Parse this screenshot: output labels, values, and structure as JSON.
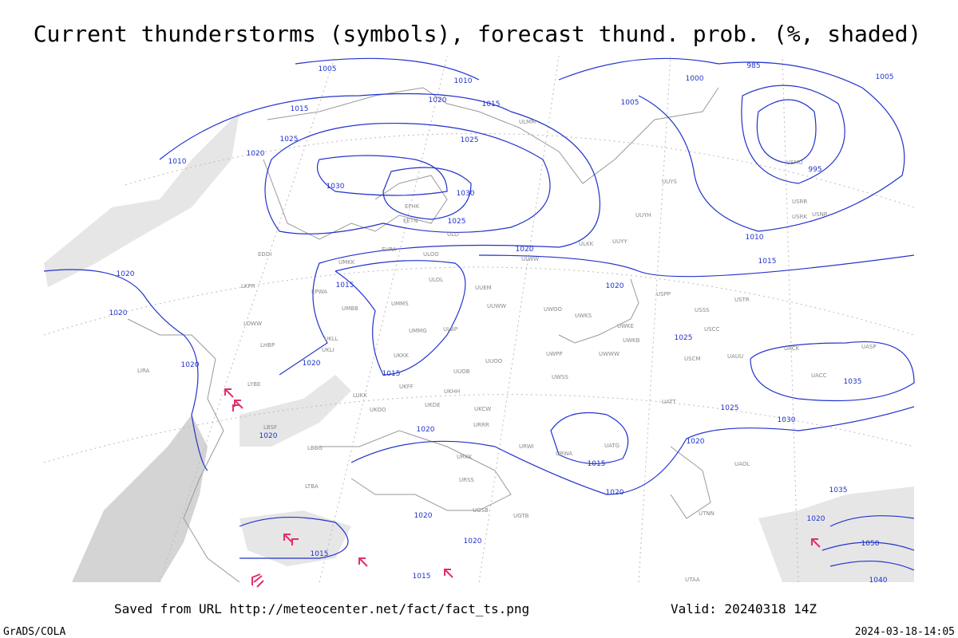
{
  "header": {
    "title": "Current thunderstorms (symbols), forecast thund. prob. (%, shaded)"
  },
  "footer": {
    "saved": "Saved from URL http://meteocenter.net/fact/fact_ts.png",
    "valid": "Valid: 20240318 14Z",
    "software": "GrADS/COLA",
    "timestamp": "2024-03-18-14:05"
  },
  "isobar_labels": [
    1005,
    1010,
    1020,
    1015,
    1015,
    1025,
    1020,
    1010,
    1025,
    1030,
    1030,
    1025,
    1020,
    1020,
    1015,
    1020,
    1020,
    1020,
    1020,
    1015,
    1025,
    1025,
    1030,
    1035,
    1020,
    1020,
    1015,
    1020,
    1020,
    1020,
    1020,
    1015,
    1015,
    1000,
    1005,
    985,
    995,
    1005,
    1010,
    1015,
    1050,
    1040,
    1035,
    1020
  ],
  "stations": [
    "ULMM",
    "ULLI",
    "EFHK",
    "EETN",
    "EVRA",
    "ULOO",
    "UMKK",
    "UMMS",
    "ULOL",
    "UUEM",
    "UUWW",
    "UMMG",
    "ULBP",
    "UKKK",
    "UUOO",
    "UUOB",
    "UKHH",
    "UKFF",
    "UKDE",
    "UKCW",
    "URRR",
    "UKOO",
    "LUKK",
    "URWI",
    "URKK",
    "URSS",
    "UGSB",
    "UGTB",
    "LYBE",
    "LBSF",
    "LBBG",
    "LTBA",
    "LIRA",
    "LOWW",
    "LKPR",
    "EPWA",
    "UMBB",
    "UKLL",
    "UKLI",
    "LHBP",
    "EDDI",
    "UUYY",
    "ULKK",
    "ULWW",
    "UUYS",
    "UUYH",
    "UWOO",
    "UWKS",
    "UWKE",
    "UWKB",
    "UWWW",
    "UWPP",
    "UWSS",
    "URWA",
    "UATG",
    "UATT",
    "UACC",
    "UACK",
    "UASP",
    "UAOL",
    "UTNN",
    "UTAA",
    "USSS",
    "USCC",
    "USCM",
    "UAUU",
    "USTR",
    "USPP",
    "USRR",
    "USRK",
    "USNR",
    "USMU"
  ]
}
